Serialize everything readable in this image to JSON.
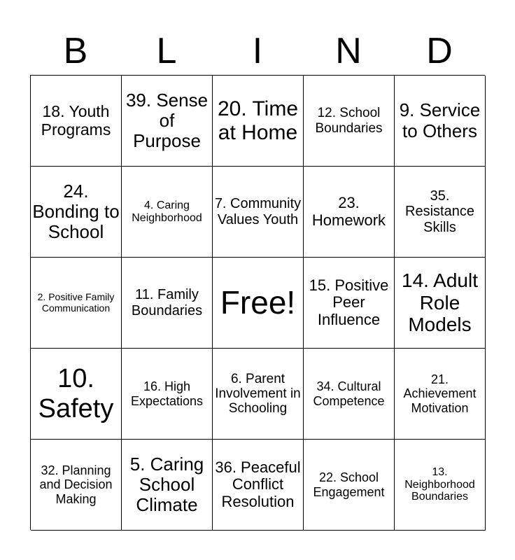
{
  "header": {
    "letters": [
      "B",
      "L",
      "I",
      "N",
      "D"
    ]
  },
  "cells": [
    "18. Youth Programs",
    "39. Sense of Purpose",
    "20. Time at Home",
    "12. School Boundaries",
    "9. Service to Others",
    "24. Bonding to School",
    "4. Caring Neighborhood",
    "7. Community Values Youth",
    "23. Homework",
    "35. Resistance Skills",
    "2. Positive Family Communication",
    "11. Family Boundaries",
    "Free!",
    "15. Positive Peer Influence",
    "14. Adult Role Models",
    "10. Safety",
    "16. High Expectations",
    "6. Parent Involvement in Schooling",
    "34. Cultural Competence",
    "21. Achievement Motivation",
    "32. Planning and Decision Making",
    "5. Caring School Climate",
    "36. Peaceful Conflict Resolution",
    "22. School Engagement",
    "13. Neighborhood Boundaries"
  ]
}
